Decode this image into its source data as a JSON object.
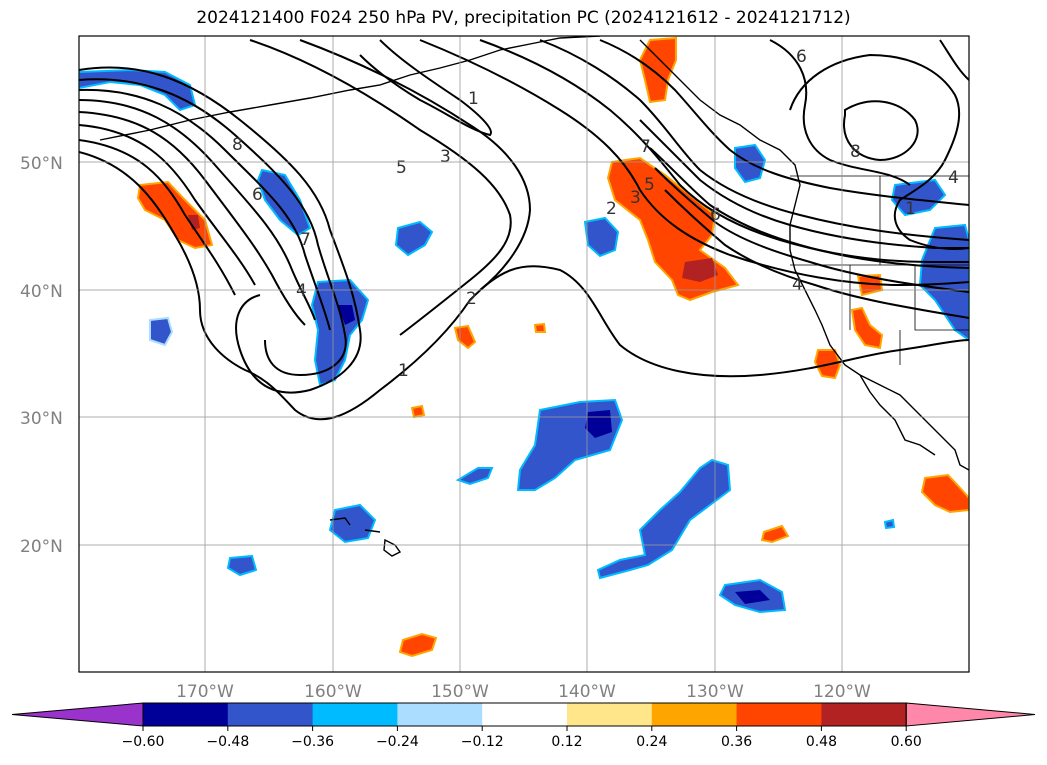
{
  "title": "2024121400 F024 250 hPa PV, precipitation PC (2024121612 - 2024121712)",
  "map": {
    "lat_labels": [
      "50°N",
      "40°N",
      "30°N",
      "20°N"
    ],
    "lon_labels": [
      "170°W",
      "160°W",
      "150°W",
      "140°W",
      "130°W",
      "120°W"
    ],
    "contour_labels": [
      "1",
      "3",
      "5",
      "8",
      "6",
      "7",
      "4",
      "2",
      "1",
      "7",
      "5",
      "3",
      "2",
      "6",
      "4",
      "6",
      "8",
      "4",
      "1"
    ]
  },
  "colorbar": {
    "tick_labels": [
      "−0.60",
      "−0.48",
      "−0.36",
      "−0.24",
      "−0.12",
      "0.12",
      "0.24",
      "0.36",
      "0.48",
      "0.60"
    ],
    "colors": [
      "#9933cc",
      "#000099",
      "#3355cc",
      "#00bbff",
      "#aaddff",
      "#ffffff",
      "#ffe68a",
      "#ffa500",
      "#ff4500",
      "#b22222",
      "#ff88aa"
    ]
  },
  "palette": {
    "neg_strong": "#000099",
    "neg_mid": "#3355cc",
    "neg_light": "#00bbff",
    "pos_light": "#ffe68a",
    "pos_mid": "#ffa500",
    "pos_strong": "#ff4500",
    "pos_max": "#b22222"
  }
}
